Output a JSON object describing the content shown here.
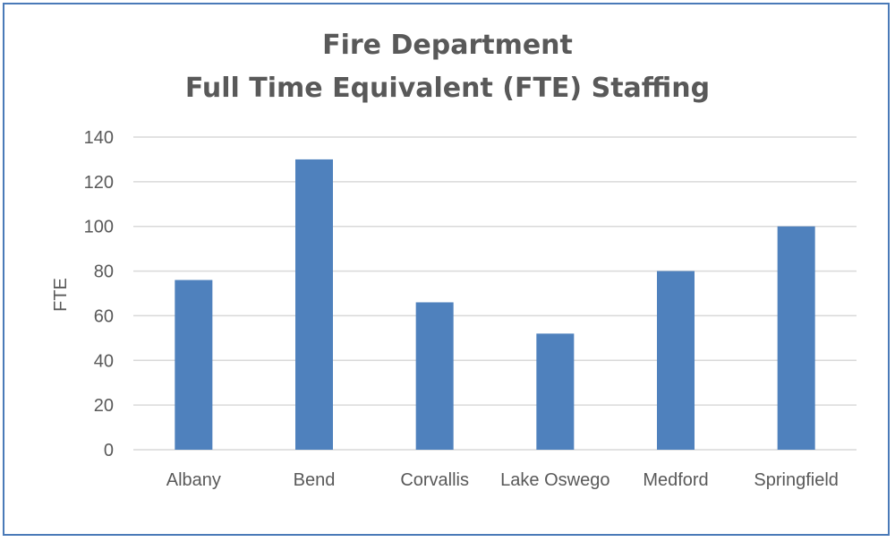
{
  "chart_data": {
    "type": "bar",
    "title_line1": "Fire Department",
    "title_line2": "Full Time Equivalent (FTE) Staffing",
    "xlabel": "",
    "ylabel": "FTE",
    "categories": [
      "Albany",
      "Bend",
      "Corvallis",
      "Lake Oswego",
      "Medford",
      "Springfield"
    ],
    "values": [
      76,
      130,
      66,
      52,
      80,
      100
    ],
    "ylim": [
      0,
      140
    ],
    "yticks": [
      0,
      20,
      40,
      60,
      80,
      100,
      120,
      140
    ],
    "grid": true,
    "legend": "none",
    "colors": {
      "bar": "#4f81bd",
      "grid": "#d9d9d9",
      "frame": "#4a7ab8"
    }
  }
}
